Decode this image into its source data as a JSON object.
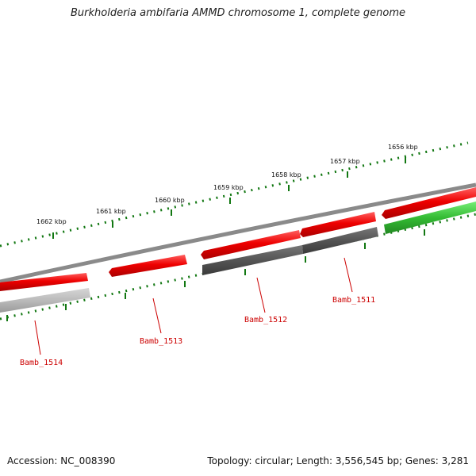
{
  "title": "Burkholderia ambifaria AMMD chromosome 1, complete genome",
  "accession_text": "Accession: NC_008390",
  "summary_text": "Topology: circular; Length: 3,556,545 bp; Genes: 3,281",
  "colors": {
    "forward_gene": "#ee0000",
    "reverse_gene_dark": "#555555",
    "reverse_gene_light": "#bbbbbb",
    "rna_gene": "#33bb33",
    "backbone": "#888888",
    "ticks": "#117711",
    "gene_label": "#cc0000"
  },
  "tick_labels": [
    "1662 kbp",
    "1661 kbp",
    "1660 kbp",
    "1659 kbp",
    "1658 kbp",
    "1657 kbp",
    "1656 kbp"
  ],
  "gene_labels": [
    "Bamb_1514",
    "Bamb_1513",
    "Bamb_1512",
    "Bamb_1511"
  ]
}
